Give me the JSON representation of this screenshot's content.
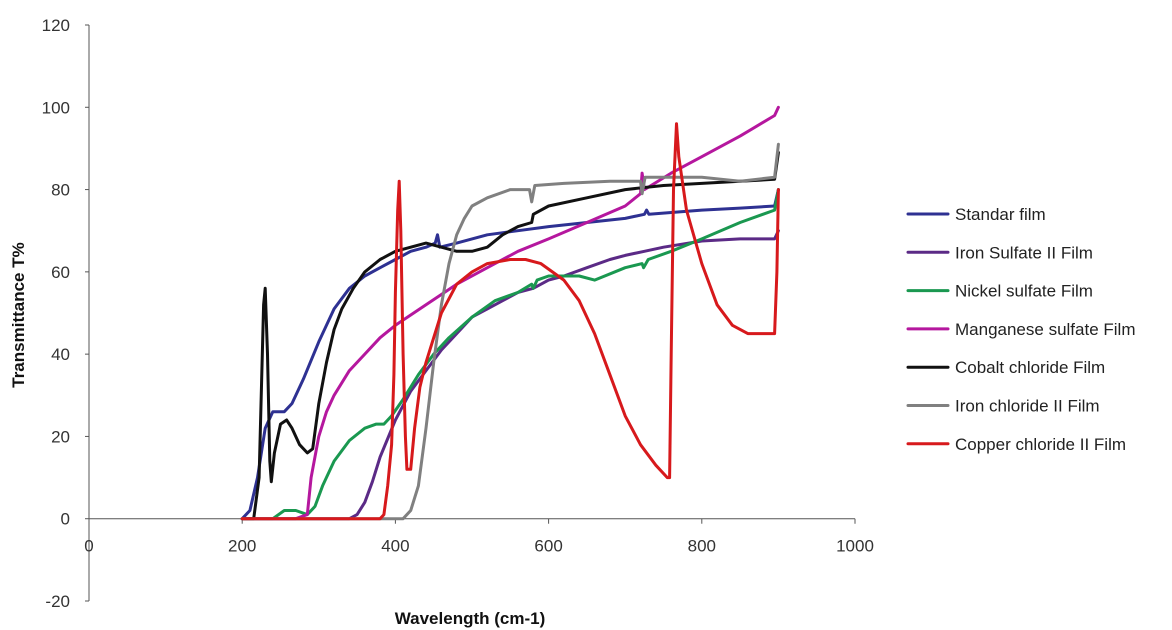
{
  "chart_data": {
    "type": "line",
    "title": "",
    "xlabel": "Wavelength (cm-1)",
    "ylabel": "Transmittance T%",
    "xlim": [
      0,
      1000
    ],
    "ylim": [
      -20,
      120
    ],
    "xticks": [
      0,
      200,
      400,
      600,
      800,
      1000
    ],
    "yticks": [
      -20,
      0,
      20,
      40,
      60,
      80,
      100,
      120
    ],
    "grid": false,
    "legend_position": "right",
    "series": [
      {
        "name": "Standar film",
        "color": "#2e3192",
        "points": [
          [
            200,
            0
          ],
          [
            210,
            2
          ],
          [
            220,
            10
          ],
          [
            230,
            22
          ],
          [
            240,
            26
          ],
          [
            255,
            26
          ],
          [
            265,
            28
          ],
          [
            280,
            34
          ],
          [
            300,
            43
          ],
          [
            320,
            51
          ],
          [
            340,
            56
          ],
          [
            360,
            59
          ],
          [
            380,
            61
          ],
          [
            400,
            63
          ],
          [
            420,
            65
          ],
          [
            440,
            66
          ],
          [
            452,
            67
          ],
          [
            455,
            69
          ],
          [
            458,
            66
          ],
          [
            480,
            67
          ],
          [
            520,
            69
          ],
          [
            560,
            70
          ],
          [
            600,
            71
          ],
          [
            650,
            72
          ],
          [
            700,
            73
          ],
          [
            725,
            74
          ],
          [
            728,
            75
          ],
          [
            731,
            74
          ],
          [
            800,
            75
          ],
          [
            850,
            75.5
          ],
          [
            895,
            76
          ],
          [
            900,
            80
          ]
        ]
      },
      {
        "name": "Iron Sulfate II Film",
        "color": "#5b2a86",
        "points": [
          [
            200,
            0
          ],
          [
            340,
            0
          ],
          [
            350,
            1
          ],
          [
            360,
            4
          ],
          [
            370,
            9
          ],
          [
            380,
            15
          ],
          [
            400,
            24
          ],
          [
            420,
            31
          ],
          [
            440,
            36
          ],
          [
            460,
            41
          ],
          [
            480,
            45
          ],
          [
            500,
            49
          ],
          [
            520,
            51
          ],
          [
            540,
            53
          ],
          [
            560,
            55
          ],
          [
            580,
            56
          ],
          [
            600,
            58
          ],
          [
            620,
            59
          ],
          [
            650,
            61
          ],
          [
            680,
            63
          ],
          [
            700,
            64
          ],
          [
            725,
            65
          ],
          [
            750,
            66
          ],
          [
            800,
            67.5
          ],
          [
            850,
            68
          ],
          [
            895,
            68
          ],
          [
            900,
            70
          ]
        ]
      },
      {
        "name": "Nickel sulfate Film",
        "color": "#1a9850",
        "points": [
          [
            200,
            0
          ],
          [
            240,
            0
          ],
          [
            255,
            2
          ],
          [
            270,
            2
          ],
          [
            285,
            1
          ],
          [
            295,
            3
          ],
          [
            305,
            8
          ],
          [
            320,
            14
          ],
          [
            340,
            19
          ],
          [
            360,
            22
          ],
          [
            375,
            23
          ],
          [
            385,
            23
          ],
          [
            395,
            25
          ],
          [
            410,
            29
          ],
          [
            430,
            35
          ],
          [
            450,
            40
          ],
          [
            470,
            44
          ],
          [
            500,
            49
          ],
          [
            530,
            53
          ],
          [
            560,
            55
          ],
          [
            578,
            57
          ],
          [
            580,
            56
          ],
          [
            585,
            58
          ],
          [
            600,
            59
          ],
          [
            640,
            59
          ],
          [
            660,
            58
          ],
          [
            700,
            61
          ],
          [
            722,
            62
          ],
          [
            724,
            61
          ],
          [
            730,
            63
          ],
          [
            760,
            65
          ],
          [
            800,
            68
          ],
          [
            850,
            72
          ],
          [
            895,
            75
          ],
          [
            900,
            80
          ]
        ]
      },
      {
        "name": "Manganese sulfate Film",
        "color": "#b5179e",
        "points": [
          [
            200,
            0
          ],
          [
            270,
            0
          ],
          [
            285,
            1
          ],
          [
            290,
            10
          ],
          [
            300,
            20
          ],
          [
            310,
            26
          ],
          [
            320,
            30
          ],
          [
            340,
            36
          ],
          [
            360,
            40
          ],
          [
            380,
            44
          ],
          [
            400,
            47
          ],
          [
            440,
            52
          ],
          [
            480,
            57
          ],
          [
            520,
            61
          ],
          [
            560,
            65
          ],
          [
            600,
            68
          ],
          [
            650,
            72
          ],
          [
            700,
            76
          ],
          [
            720,
            79
          ],
          [
            722,
            84
          ],
          [
            725,
            80
          ],
          [
            760,
            84
          ],
          [
            800,
            88
          ],
          [
            850,
            93
          ],
          [
            895,
            98
          ],
          [
            900,
            100
          ]
        ]
      },
      {
        "name": "Cobalt chloride Film",
        "color": "#111111",
        "points": [
          [
            200,
            0
          ],
          [
            215,
            0
          ],
          [
            222,
            10
          ],
          [
            228,
            52
          ],
          [
            230,
            56
          ],
          [
            233,
            40
          ],
          [
            236,
            14
          ],
          [
            238,
            9
          ],
          [
            242,
            16
          ],
          [
            250,
            23
          ],
          [
            258,
            24
          ],
          [
            265,
            22
          ],
          [
            275,
            18
          ],
          [
            285,
            16
          ],
          [
            292,
            17
          ],
          [
            300,
            28
          ],
          [
            310,
            38
          ],
          [
            320,
            46
          ],
          [
            330,
            51
          ],
          [
            345,
            56
          ],
          [
            360,
            60
          ],
          [
            380,
            63
          ],
          [
            400,
            65
          ],
          [
            420,
            66
          ],
          [
            440,
            67
          ],
          [
            460,
            66
          ],
          [
            480,
            65
          ],
          [
            500,
            65
          ],
          [
            520,
            66
          ],
          [
            540,
            69
          ],
          [
            560,
            71
          ],
          [
            578,
            72
          ],
          [
            580,
            74
          ],
          [
            600,
            76
          ],
          [
            650,
            78
          ],
          [
            700,
            80
          ],
          [
            750,
            81
          ],
          [
            800,
            81.5
          ],
          [
            850,
            82
          ],
          [
            895,
            82.5
          ],
          [
            900,
            89
          ]
        ]
      },
      {
        "name": "Iron chloride II Film",
        "color": "#808080",
        "points": [
          [
            200,
            0
          ],
          [
            410,
            0
          ],
          [
            420,
            2
          ],
          [
            430,
            8
          ],
          [
            440,
            22
          ],
          [
            450,
            38
          ],
          [
            460,
            52
          ],
          [
            470,
            62
          ],
          [
            480,
            69
          ],
          [
            490,
            73
          ],
          [
            500,
            76
          ],
          [
            520,
            78
          ],
          [
            550,
            80
          ],
          [
            575,
            80
          ],
          [
            578,
            77
          ],
          [
            582,
            81
          ],
          [
            620,
            81.5
          ],
          [
            680,
            82
          ],
          [
            720,
            82
          ],
          [
            722,
            79
          ],
          [
            726,
            83
          ],
          [
            800,
            83
          ],
          [
            850,
            82
          ],
          [
            895,
            83
          ],
          [
            900,
            91
          ]
        ]
      },
      {
        "name": "Copper chloride II Film",
        "color": "#d7191c",
        "points": [
          [
            200,
            0
          ],
          [
            380,
            0
          ],
          [
            385,
            1
          ],
          [
            390,
            8
          ],
          [
            395,
            18
          ],
          [
            398,
            35
          ],
          [
            400,
            55
          ],
          [
            403,
            75
          ],
          [
            405,
            82
          ],
          [
            407,
            70
          ],
          [
            410,
            40
          ],
          [
            413,
            20
          ],
          [
            415,
            12
          ],
          [
            420,
            12
          ],
          [
            425,
            22
          ],
          [
            432,
            32
          ],
          [
            440,
            38
          ],
          [
            460,
            50
          ],
          [
            480,
            57
          ],
          [
            500,
            60
          ],
          [
            520,
            62
          ],
          [
            550,
            63
          ],
          [
            570,
            63
          ],
          [
            590,
            62
          ],
          [
            620,
            58
          ],
          [
            640,
            53
          ],
          [
            660,
            45
          ],
          [
            680,
            35
          ],
          [
            700,
            25
          ],
          [
            720,
            18
          ],
          [
            740,
            13
          ],
          [
            755,
            10
          ],
          [
            758,
            10
          ],
          [
            760,
            40
          ],
          [
            763,
            80
          ],
          [
            767,
            96
          ],
          [
            770,
            88
          ],
          [
            780,
            75
          ],
          [
            800,
            62
          ],
          [
            820,
            52
          ],
          [
            840,
            47
          ],
          [
            860,
            45
          ],
          [
            880,
            45
          ],
          [
            895,
            45
          ],
          [
            898,
            60
          ],
          [
            900,
            80
          ]
        ]
      }
    ]
  }
}
